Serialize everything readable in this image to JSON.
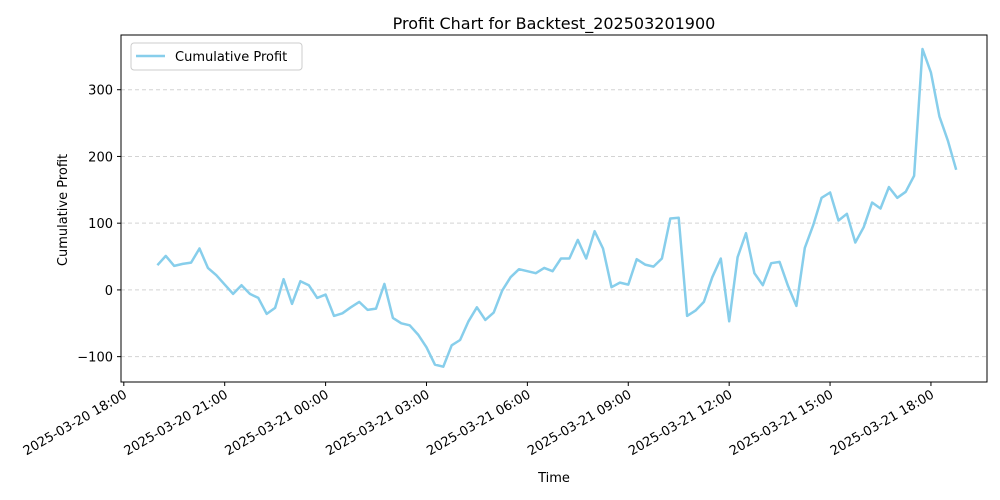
{
  "chart_data": {
    "type": "line",
    "title": "Profit Chart for Backtest_202503201900",
    "xlabel": "Time",
    "ylabel": "Cumulative Profit",
    "grid": {
      "x": false,
      "y": true,
      "style": "dashed"
    },
    "legend_position": "top-left",
    "xlim": [
      "2025-03-20 17:55",
      "2025-03-21 19:40"
    ],
    "ylim": [
      -138,
      382
    ],
    "x_ticks": [
      {
        "t": "2025-03-20 18:00",
        "label": "2025-03-20 18:00"
      },
      {
        "t": "2025-03-20 21:00",
        "label": "2025-03-20 21:00"
      },
      {
        "t": "2025-03-21 00:00",
        "label": "2025-03-21 00:00"
      },
      {
        "t": "2025-03-21 03:00",
        "label": "2025-03-21 03:00"
      },
      {
        "t": "2025-03-21 06:00",
        "label": "2025-03-21 06:00"
      },
      {
        "t": "2025-03-21 09:00",
        "label": "2025-03-21 09:00"
      },
      {
        "t": "2025-03-21 12:00",
        "label": "2025-03-21 12:00"
      },
      {
        "t": "2025-03-21 15:00",
        "label": "2025-03-21 15:00"
      },
      {
        "t": "2025-03-21 18:00",
        "label": "2025-03-21 18:00"
      }
    ],
    "y_ticks": [
      {
        "v": -100,
        "label": "−100"
      },
      {
        "v": 0,
        "label": "0"
      },
      {
        "v": 100,
        "label": "100"
      },
      {
        "v": 200,
        "label": "200"
      },
      {
        "v": 300,
        "label": "300"
      }
    ],
    "series": [
      {
        "name": "Cumulative Profit",
        "color": "#87ceeb",
        "points": [
          [
            "2025-03-20 19:00",
            37
          ],
          [
            "2025-03-20 19:15",
            51
          ],
          [
            "2025-03-20 19:30",
            36
          ],
          [
            "2025-03-20 19:45",
            39
          ],
          [
            "2025-03-20 20:00",
            41
          ],
          [
            "2025-03-20 20:15",
            62
          ],
          [
            "2025-03-20 20:30",
            33
          ],
          [
            "2025-03-20 20:45",
            22
          ],
          [
            "2025-03-20 21:00",
            8
          ],
          [
            "2025-03-20 21:15",
            -6
          ],
          [
            "2025-03-20 21:30",
            7
          ],
          [
            "2025-03-20 21:45",
            -6
          ],
          [
            "2025-03-20 22:00",
            -12
          ],
          [
            "2025-03-20 22:15",
            -36
          ],
          [
            "2025-03-20 22:30",
            -27
          ],
          [
            "2025-03-20 22:45",
            16
          ],
          [
            "2025-03-20 23:00",
            -21
          ],
          [
            "2025-03-20 23:15",
            13
          ],
          [
            "2025-03-20 23:30",
            7
          ],
          [
            "2025-03-20 23:45",
            -12
          ],
          [
            "2025-03-21 00:00",
            -7
          ],
          [
            "2025-03-21 00:15",
            -39
          ],
          [
            "2025-03-21 00:30",
            -35
          ],
          [
            "2025-03-21 00:45",
            -26
          ],
          [
            "2025-03-21 01:00",
            -18
          ],
          [
            "2025-03-21 01:15",
            -30
          ],
          [
            "2025-03-21 01:30",
            -28
          ],
          [
            "2025-03-21 01:45",
            9
          ],
          [
            "2025-03-21 02:00",
            -42
          ],
          [
            "2025-03-21 02:15",
            -50
          ],
          [
            "2025-03-21 02:30",
            -53
          ],
          [
            "2025-03-21 02:45",
            -67
          ],
          [
            "2025-03-21 03:00",
            -86
          ],
          [
            "2025-03-21 03:15",
            -112
          ],
          [
            "2025-03-21 03:30",
            -115
          ],
          [
            "2025-03-21 03:45",
            -83
          ],
          [
            "2025-03-21 04:00",
            -75
          ],
          [
            "2025-03-21 04:15",
            -47
          ],
          [
            "2025-03-21 04:30",
            -26
          ],
          [
            "2025-03-21 04:45",
            -45
          ],
          [
            "2025-03-21 05:00",
            -34
          ],
          [
            "2025-03-21 05:15",
            -1
          ],
          [
            "2025-03-21 05:30",
            19
          ],
          [
            "2025-03-21 05:45",
            31
          ],
          [
            "2025-03-21 06:00",
            28
          ],
          [
            "2025-03-21 06:15",
            25
          ],
          [
            "2025-03-21 06:30",
            33
          ],
          [
            "2025-03-21 06:45",
            28
          ],
          [
            "2025-03-21 07:00",
            47
          ],
          [
            "2025-03-21 07:15",
            47
          ],
          [
            "2025-03-21 07:30",
            75
          ],
          [
            "2025-03-21 07:45",
            47
          ],
          [
            "2025-03-21 08:00",
            88
          ],
          [
            "2025-03-21 08:15",
            62
          ],
          [
            "2025-03-21 08:30",
            4
          ],
          [
            "2025-03-21 08:45",
            11
          ],
          [
            "2025-03-21 09:00",
            8
          ],
          [
            "2025-03-21 09:15",
            46
          ],
          [
            "2025-03-21 09:30",
            38
          ],
          [
            "2025-03-21 09:45",
            35
          ],
          [
            "2025-03-21 10:00",
            47
          ],
          [
            "2025-03-21 10:15",
            107
          ],
          [
            "2025-03-21 10:30",
            108
          ],
          [
            "2025-03-21 10:45",
            -39
          ],
          [
            "2025-03-21 11:00",
            -31
          ],
          [
            "2025-03-21 11:15",
            -18
          ],
          [
            "2025-03-21 11:30",
            19
          ],
          [
            "2025-03-21 11:45",
            47
          ],
          [
            "2025-03-21 12:00",
            -47
          ],
          [
            "2025-03-21 12:15",
            49
          ],
          [
            "2025-03-21 12:30",
            85
          ],
          [
            "2025-03-21 12:45",
            25
          ],
          [
            "2025-03-21 13:00",
            7
          ],
          [
            "2025-03-21 13:15",
            40
          ],
          [
            "2025-03-21 13:30",
            42
          ],
          [
            "2025-03-21 13:45",
            6
          ],
          [
            "2025-03-21 14:00",
            -24
          ],
          [
            "2025-03-21 14:15",
            63
          ],
          [
            "2025-03-21 14:30",
            97
          ],
          [
            "2025-03-21 14:45",
            138
          ],
          [
            "2025-03-21 15:00",
            146
          ],
          [
            "2025-03-21 15:15",
            104
          ],
          [
            "2025-03-21 15:30",
            114
          ],
          [
            "2025-03-21 15:45",
            71
          ],
          [
            "2025-03-21 16:00",
            94
          ],
          [
            "2025-03-21 16:15",
            131
          ],
          [
            "2025-03-21 16:30",
            122
          ],
          [
            "2025-03-21 16:45",
            154
          ],
          [
            "2025-03-21 17:00",
            138
          ],
          [
            "2025-03-21 17:15",
            147
          ],
          [
            "2025-03-21 17:30",
            171
          ],
          [
            "2025-03-21 17:45",
            361
          ],
          [
            "2025-03-21 18:00",
            326
          ],
          [
            "2025-03-21 18:15",
            260
          ],
          [
            "2025-03-21 18:30",
            224
          ],
          [
            "2025-03-21 18:45",
            180
          ]
        ]
      }
    ]
  }
}
